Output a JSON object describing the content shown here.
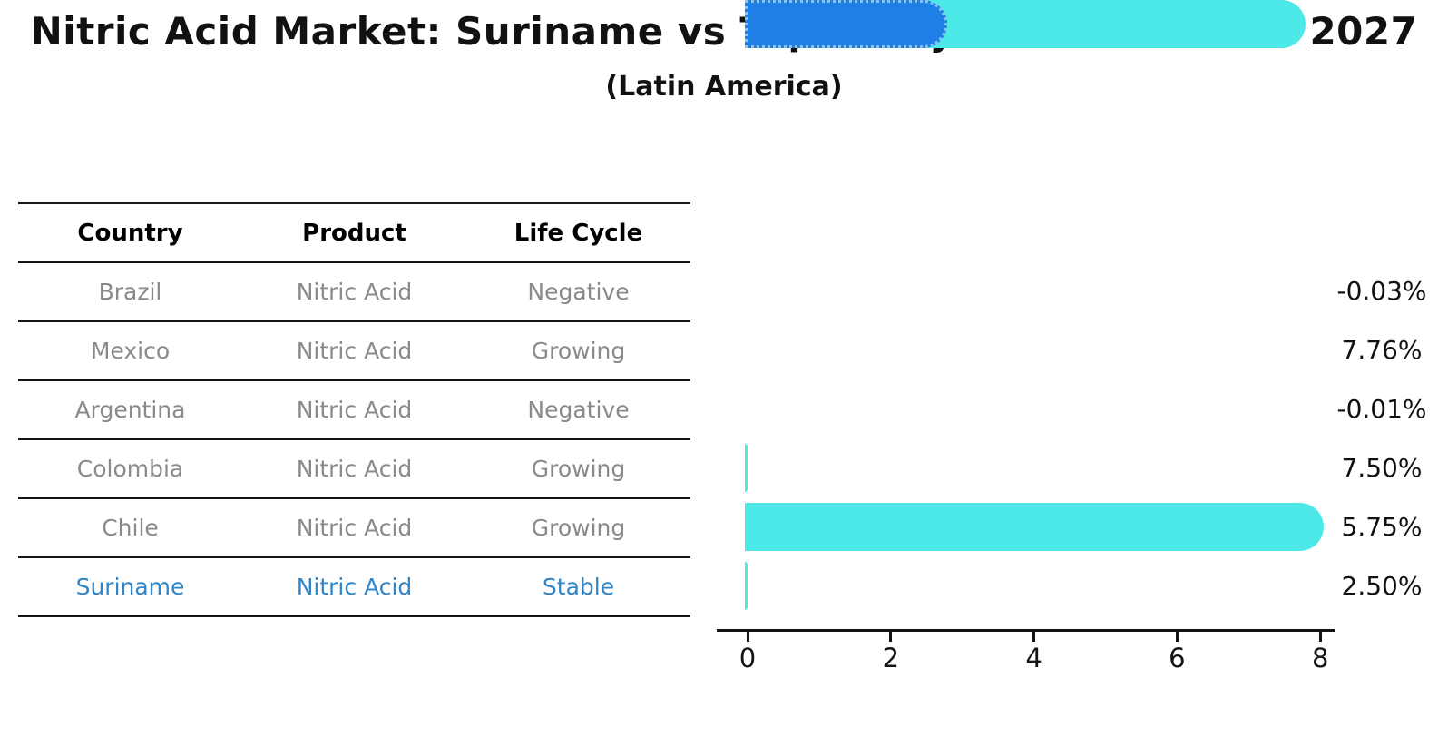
{
  "chart_data": {
    "type": "bar",
    "orientation": "horizontal",
    "title": "Nitric Acid Market: Suriname vs Top 5 Major Economies in 2027",
    "subtitle": "(Latin America)",
    "categories": [
      "Brazil",
      "Mexico",
      "Argentina",
      "Colombia",
      "Chile",
      "Suriname"
    ],
    "values": [
      -0.03,
      7.76,
      -0.01,
      7.5,
      5.75,
      2.5
    ],
    "value_labels": [
      "-0.03%",
      "7.76%",
      "-0.01%",
      "7.50%",
      "5.75%",
      "2.50%"
    ],
    "unit": "%",
    "xticks": [
      0,
      2,
      4,
      6,
      8
    ],
    "xlim": [
      -0.4,
      8.2
    ],
    "grid": false,
    "legend": false,
    "bar_color": "#4DE8E8",
    "highlight_color": "#1E7FE6",
    "highlight_border_color": "#86C3F5",
    "highlight_text_color": "#2E86C8",
    "highlight_index": 5,
    "highlight_category": "Suriname",
    "axis_color": "#141414"
  },
  "table": {
    "columns": [
      "Country",
      "Product",
      "Life Cycle"
    ],
    "rows": [
      {
        "country": "Brazil",
        "product": "Nitric Acid",
        "life_cycle": "Negative"
      },
      {
        "country": "Mexico",
        "product": "Nitric Acid",
        "life_cycle": "Growing"
      },
      {
        "country": "Argentina",
        "product": "Nitric Acid",
        "life_cycle": "Negative"
      },
      {
        "country": "Colombia",
        "product": "Nitric Acid",
        "life_cycle": "Growing"
      },
      {
        "country": "Chile",
        "product": "Nitric Acid",
        "life_cycle": "Growing"
      },
      {
        "country": "Suriname",
        "product": "Nitric Acid",
        "life_cycle": "Stable"
      }
    ],
    "header_text_color": "#000000",
    "row_text_color": "#8A8A8A"
  }
}
